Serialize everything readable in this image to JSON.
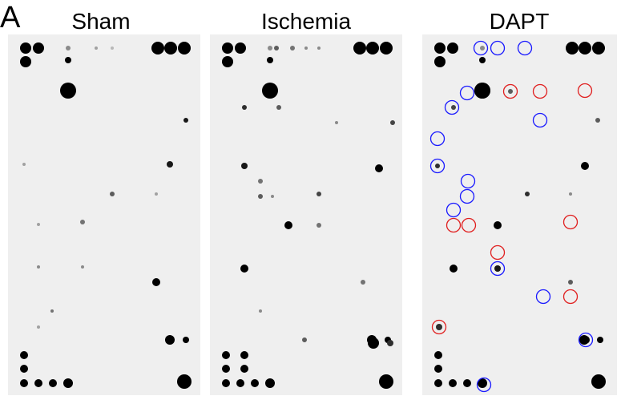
{
  "figure": {
    "panel_label": "A",
    "panels": [
      {
        "title": "Sham"
      },
      {
        "title": "Ischemia"
      },
      {
        "title": "DAPT"
      }
    ]
  }
}
